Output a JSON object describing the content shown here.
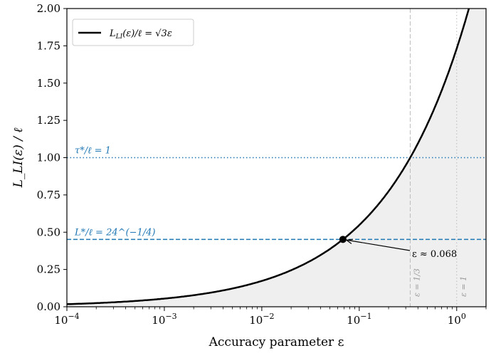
{
  "chart_data": {
    "type": "line",
    "xlabel": "Accuracy parameter ε",
    "ylabel": "L_LI(ε) / ℓ",
    "xscale": "log",
    "xlim": [
      0.0001,
      2
    ],
    "ylim": [
      0,
      2
    ],
    "x_ticks": [
      {
        "base": "10",
        "exp": "−4",
        "v": 0.0001
      },
      {
        "base": "10",
        "exp": "−3",
        "v": 0.001
      },
      {
        "base": "10",
        "exp": "−2",
        "v": 0.01
      },
      {
        "base": "10",
        "exp": "−1",
        "v": 0.1
      },
      {
        "base": "10",
        "exp": "0",
        "v": 1
      }
    ],
    "y_ticks": [
      "0.00",
      "0.25",
      "0.50",
      "0.75",
      "1.00",
      "1.25",
      "1.50",
      "1.75",
      "2.00"
    ],
    "series": [
      {
        "name": "L_LI(ε)/ℓ = √3ε",
        "formula": "sqrt(3*x)",
        "color": "#000000",
        "fill_under": "#efefef"
      }
    ],
    "hlines": [
      {
        "y": 1.0,
        "label": "τ*/ℓ = 1",
        "style": "dotted",
        "color": "#1f77b4"
      },
      {
        "y": 0.4518,
        "label": "L*/ℓ = 24^(−1/4)",
        "style": "dashed",
        "color": "#1f77b4"
      }
    ],
    "vlines": [
      {
        "x": 0.3333,
        "label": "ε = 1/3",
        "style": "dashed",
        "color": "#bbbbbb"
      },
      {
        "x": 1.0,
        "label": "ε = 1",
        "style": "dotted",
        "color": "#bbbbbb"
      }
    ],
    "point": {
      "x": 0.068,
      "y": 0.4518,
      "annotation": "ε ≈ 0.068"
    },
    "legend": {
      "placement": "top-left",
      "label_main": "L",
      "label_sub": "LI",
      "label_rest": "(ε)/ℓ = √3ε"
    },
    "grid": false
  }
}
